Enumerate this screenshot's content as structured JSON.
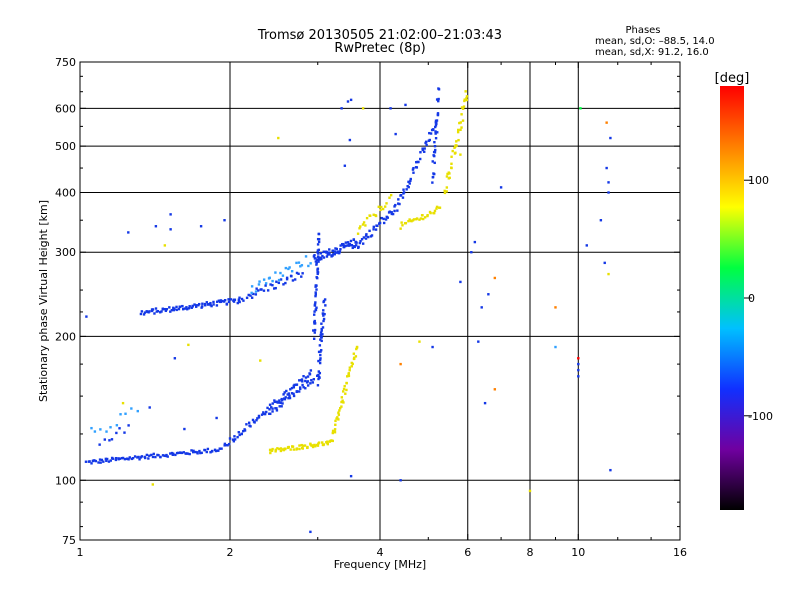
{
  "chart_data": {
    "type": "scatter",
    "title": "Tromsø 20130505 21:02:00–21:03:43",
    "subtitle": "RwPretec (8p)",
    "xlabel": "Frequency [MHz]",
    "ylabel": "Stationary phase Virtual Height [km]",
    "x_scale": "log",
    "y_scale": "log",
    "xlim": [
      1,
      16
    ],
    "ylim": [
      75,
      750
    ],
    "x_ticks": [
      1,
      2,
      4,
      6,
      8,
      10,
      16
    ],
    "x_tick_labels": [
      "1",
      "2",
      "4",
      "6",
      "8",
      "10",
      "16"
    ],
    "x_gridlines": [
      2,
      4,
      6,
      8,
      10
    ],
    "y_ticks": [
      75,
      100,
      200,
      300,
      400,
      500,
      600,
      750
    ],
    "y_tick_labels": [
      "75",
      "100",
      "200",
      "300",
      "400",
      "500",
      "600",
      "750"
    ],
    "y_gridlines": [
      100,
      200,
      300,
      400,
      500,
      600
    ],
    "grid": true,
    "stats": {
      "heading": "Phases",
      "line1": "mean, sd,O: –88.5, 14.0",
      "line2": "mean, sd,X:  91.2, 16.0"
    },
    "colorbar": {
      "label": "[deg]",
      "min": -180,
      "max": 180,
      "tick_values": [
        100,
        0,
        -100
      ],
      "tick_labels": [
        "100",
        "0",
        "-100"
      ],
      "colors": [
        "#000000",
        "#7000a0",
        "#1030ff",
        "#00c0ff",
        "#00ff40",
        "#ffff00",
        "#ff8000",
        "#ff0000"
      ]
    },
    "series": [
      {
        "color": "#1438e6",
        "segments": [
          {
            "f0": 1.03,
            "f1": 1.92,
            "h0": 109,
            "h1": 116,
            "n": 95,
            "jitter": 0.01
          },
          {
            "f0": 1.33,
            "f1": 2.1,
            "h0": 224,
            "h1": 238,
            "n": 85,
            "jitter": 0.012
          },
          {
            "f0": 1.95,
            "f1": 2.92,
            "h0": 118,
            "h1": 168,
            "n": 70,
            "jitter": 0.015
          },
          {
            "f0": 2.1,
            "f1": 2.8,
            "h0": 240,
            "h1": 270,
            "n": 35,
            "jitter": 0.02
          },
          {
            "f0": 2.4,
            "f1": 2.95,
            "h0": 138,
            "h1": 163,
            "n": 35,
            "jitter": 0.015
          },
          {
            "f0": 2.95,
            "f1": 3.02,
            "h0": 200,
            "h1": 330,
            "n": 45,
            "jitter": 0.02
          },
          {
            "f0": 3.0,
            "f1": 3.1,
            "h0": 160,
            "h1": 240,
            "n": 40,
            "jitter": 0.03
          },
          {
            "f0": 2.95,
            "f1": 3.6,
            "h0": 290,
            "h1": 315,
            "n": 70,
            "jitter": 0.02
          },
          {
            "f0": 3.6,
            "f1": 4.3,
            "h0": 310,
            "h1": 370,
            "n": 35,
            "jitter": 0.02
          },
          {
            "f0": 4.3,
            "f1": 5.2,
            "h0": 370,
            "h1": 560,
            "n": 45,
            "jitter": 0.02
          },
          {
            "f0": 5.1,
            "f1": 5.25,
            "h0": 420,
            "h1": 650,
            "n": 30,
            "jitter": 0.03
          },
          {
            "f0": 1.1,
            "f1": 1.25,
            "h0": 120,
            "h1": 130,
            "n": 8,
            "jitter": 0.03
          }
        ]
      },
      {
        "color": "#e8e000",
        "segments": [
          {
            "f0": 2.4,
            "f1": 3.2,
            "h0": 115,
            "h1": 120,
            "n": 60,
            "jitter": 0.01
          },
          {
            "f0": 3.2,
            "f1": 3.6,
            "h0": 122,
            "h1": 190,
            "n": 45,
            "jitter": 0.02
          },
          {
            "f0": 3.6,
            "f1": 4.2,
            "h0": 330,
            "h1": 390,
            "n": 20,
            "jitter": 0.02
          },
          {
            "f0": 4.4,
            "f1": 5.3,
            "h0": 340,
            "h1": 370,
            "n": 30,
            "jitter": 0.015
          },
          {
            "f0": 5.4,
            "f1": 6.0,
            "h0": 400,
            "h1": 650,
            "n": 40,
            "jitter": 0.03
          }
        ]
      },
      {
        "color": "#30a0ff",
        "segments": [
          {
            "f0": 2.2,
            "f1": 2.9,
            "h0": 250,
            "h1": 290,
            "n": 25,
            "jitter": 0.03
          },
          {
            "f0": 1.05,
            "f1": 1.3,
            "h0": 125,
            "h1": 140,
            "n": 10,
            "jitter": 0.03
          }
        ]
      }
    ],
    "scattered_points": [
      {
        "x": 1.03,
        "y": 220,
        "c": "#1438e6"
      },
      {
        "x": 1.25,
        "y": 330,
        "c": "#1438e6"
      },
      {
        "x": 1.42,
        "y": 340,
        "c": "#1438e6"
      },
      {
        "x": 1.52,
        "y": 360,
        "c": "#1438e6"
      },
      {
        "x": 1.52,
        "y": 335,
        "c": "#1438e6"
      },
      {
        "x": 1.75,
        "y": 340,
        "c": "#1438e6"
      },
      {
        "x": 1.95,
        "y": 350,
        "c": "#1438e6"
      },
      {
        "x": 1.55,
        "y": 180,
        "c": "#1438e6"
      },
      {
        "x": 1.38,
        "y": 142,
        "c": "#1438e6"
      },
      {
        "x": 1.22,
        "y": 145,
        "c": "#e8e000"
      },
      {
        "x": 1.62,
        "y": 128,
        "c": "#1438e6"
      },
      {
        "x": 1.88,
        "y": 135,
        "c": "#1438e6"
      },
      {
        "x": 1.48,
        "y": 310,
        "c": "#e8e000"
      },
      {
        "x": 3.45,
        "y": 620,
        "c": "#1438e6"
      },
      {
        "x": 3.5,
        "y": 625,
        "c": "#1438e6"
      },
      {
        "x": 3.35,
        "y": 600,
        "c": "#1438e6"
      },
      {
        "x": 3.4,
        "y": 455,
        "c": "#1438e6"
      },
      {
        "x": 3.48,
        "y": 515,
        "c": "#1438e6"
      },
      {
        "x": 4.2,
        "y": 600,
        "c": "#1438e6"
      },
      {
        "x": 4.5,
        "y": 610,
        "c": "#1438e6"
      },
      {
        "x": 4.3,
        "y": 530,
        "c": "#1438e6"
      },
      {
        "x": 6.1,
        "y": 300,
        "c": "#1438e6"
      },
      {
        "x": 6.2,
        "y": 315,
        "c": "#1438e6"
      },
      {
        "x": 5.8,
        "y": 260,
        "c": "#1438e6"
      },
      {
        "x": 6.4,
        "y": 230,
        "c": "#1438e6"
      },
      {
        "x": 6.6,
        "y": 245,
        "c": "#1438e6"
      },
      {
        "x": 6.3,
        "y": 195,
        "c": "#1438e6"
      },
      {
        "x": 5.1,
        "y": 190,
        "c": "#1438e6"
      },
      {
        "x": 6.5,
        "y": 145,
        "c": "#1438e6"
      },
      {
        "x": 7.0,
        "y": 410,
        "c": "#1438e6"
      },
      {
        "x": 10.0,
        "y": 175,
        "c": "#1438e6"
      },
      {
        "x": 10.0,
        "y": 170,
        "c": "#1438e6"
      },
      {
        "x": 10.0,
        "y": 165,
        "c": "#1438e6"
      },
      {
        "x": 10.4,
        "y": 310,
        "c": "#1438e6"
      },
      {
        "x": 11.1,
        "y": 350,
        "c": "#1438e6"
      },
      {
        "x": 11.4,
        "y": 450,
        "c": "#1438e6"
      },
      {
        "x": 11.5,
        "y": 420,
        "c": "#1438e6"
      },
      {
        "x": 11.6,
        "y": 520,
        "c": "#1438e6"
      },
      {
        "x": 11.5,
        "y": 400,
        "c": "#1438e6"
      },
      {
        "x": 11.3,
        "y": 285,
        "c": "#1438e6"
      },
      {
        "x": 11.5,
        "y": 270,
        "c": "#e8e000"
      },
      {
        "x": 11.6,
        "y": 105,
        "c": "#1438e6"
      },
      {
        "x": 11.4,
        "y": 560,
        "c": "#ff8000"
      },
      {
        "x": 9.0,
        "y": 230,
        "c": "#ff8000"
      },
      {
        "x": 9.0,
        "y": 190,
        "c": "#30a0ff"
      },
      {
        "x": 10.0,
        "y": 180,
        "c": "#ff0000"
      },
      {
        "x": 10.1,
        "y": 600,
        "c": "#00ff40"
      },
      {
        "x": 2.9,
        "y": 78,
        "c": "#1438e6"
      },
      {
        "x": 3.5,
        "y": 102,
        "c": "#1438e6"
      },
      {
        "x": 4.4,
        "y": 100,
        "c": "#1438e6"
      },
      {
        "x": 8.0,
        "y": 95,
        "c": "#e8e000"
      },
      {
        "x": 6.8,
        "y": 155,
        "c": "#ff8000"
      },
      {
        "x": 6.8,
        "y": 265,
        "c": "#ff8000"
      },
      {
        "x": 4.4,
        "y": 175,
        "c": "#ff8000"
      },
      {
        "x": 3.7,
        "y": 600,
        "c": "#e8e000"
      },
      {
        "x": 2.5,
        "y": 520,
        "c": "#e8e000"
      },
      {
        "x": 5.8,
        "y": 480,
        "c": "#e8e000"
      },
      {
        "x": 4.8,
        "y": 195,
        "c": "#e8e000"
      },
      {
        "x": 2.3,
        "y": 178,
        "c": "#e8e000"
      },
      {
        "x": 1.65,
        "y": 192,
        "c": "#e8e000"
      },
      {
        "x": 1.4,
        "y": 98,
        "c": "#e8e000"
      }
    ]
  }
}
